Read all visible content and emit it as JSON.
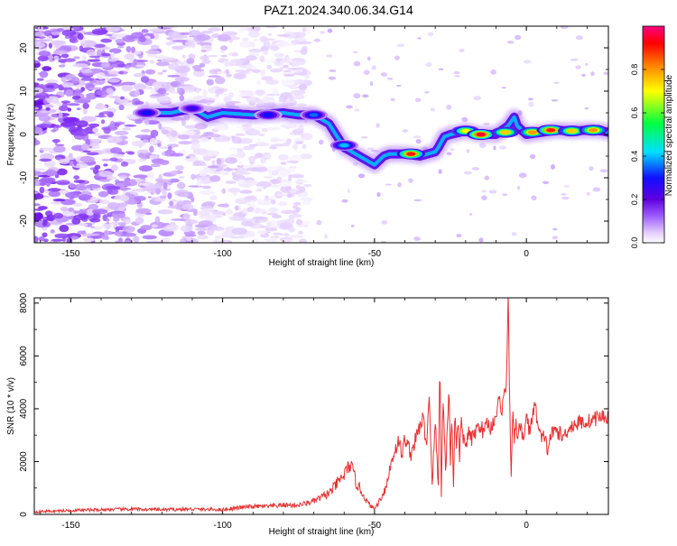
{
  "title": "PAZ1.2024.340.06.34.G14",
  "chart_data": [
    {
      "type": "heatmap",
      "xlabel": "Height of straight line (km)",
      "ylabel": "Frequency (Hz)",
      "xlim": [
        -162,
        27
      ],
      "ylim": [
        -25,
        25
      ],
      "xticks": [
        -150,
        -100,
        -50,
        0
      ],
      "yticks": [
        -20,
        -10,
        0,
        10,
        20
      ],
      "colorbar": {
        "label": "Normalized spectral amplitude",
        "range": [
          0,
          1
        ],
        "ticks": [
          0.0,
          0.2,
          0.4,
          0.6,
          0.8
        ]
      },
      "ridge": {
        "x": [
          -125,
          -117,
          -110,
          -105,
          -100,
          -90,
          -80,
          -75,
          -70,
          -65,
          -60,
          -55,
          -50,
          -47,
          -45,
          -40,
          -35,
          -30,
          -29,
          -27,
          -25,
          -20,
          -15,
          -10,
          -6,
          -4,
          -3,
          0,
          5,
          10,
          15,
          20,
          25,
          27
        ],
        "y": [
          5,
          5,
          6,
          4,
          5,
          4.5,
          5,
          4.5,
          4.5,
          2.5,
          -3,
          -5,
          -7,
          -5,
          -4.5,
          -4.5,
          -5,
          -4,
          -3,
          -0.5,
          0,
          0.8,
          0,
          0,
          2,
          4,
          2,
          0,
          0.5,
          1,
          0.8,
          1,
          0.8,
          0.5
        ]
      },
      "peaks": [
        {
          "x": -125,
          "y": 5,
          "amplitude": 0.3
        },
        {
          "x": -110,
          "y": 6,
          "amplitude": 0.25
        },
        {
          "x": -85,
          "y": 4.5,
          "amplitude": 0.3
        },
        {
          "x": -70,
          "y": 4.5,
          "amplitude": 0.35
        },
        {
          "x": -60,
          "y": -2.5,
          "amplitude": 0.4
        },
        {
          "x": -38,
          "y": -4.5,
          "amplitude": 0.9
        },
        {
          "x": -20,
          "y": 0.8,
          "amplitude": 0.7
        },
        {
          "x": -15,
          "y": 0,
          "amplitude": 0.95
        },
        {
          "x": -7,
          "y": 0.5,
          "amplitude": 0.75
        },
        {
          "x": 2,
          "y": 0.5,
          "amplitude": 0.8
        },
        {
          "x": 8,
          "y": 1,
          "amplitude": 0.9
        },
        {
          "x": 15,
          "y": 0.8,
          "amplitude": 0.75
        },
        {
          "x": 22,
          "y": 1,
          "amplitude": 0.8
        }
      ]
    },
    {
      "type": "line",
      "xlabel": "Height of straight line (km)",
      "ylabel": "SNR (10 * v/v)",
      "xlim": [
        -162,
        27
      ],
      "ylim": [
        0,
        8200
      ],
      "xticks": [
        -150,
        -100,
        -50,
        0
      ],
      "yticks": [
        0,
        2000,
        4000,
        6000,
        8000
      ],
      "color": "#e83030",
      "series": [
        {
          "x": [
            -162,
            -150,
            -140,
            -130,
            -120,
            -110,
            -100,
            -95,
            -90,
            -85,
            -80,
            -75,
            -70,
            -65,
            -62,
            -60,
            -58,
            -56,
            -54,
            -52,
            -50,
            -48,
            -46,
            -45,
            -44,
            -42,
            -41,
            -40,
            -38,
            -36,
            -34,
            -33,
            -32,
            -31,
            -30,
            -29,
            -28.5,
            -28,
            -27.5,
            -27,
            -26.5,
            -26,
            -25.5,
            -25,
            -24.5,
            -24,
            -23.5,
            -23,
            -22.5,
            -22,
            -21.5,
            -21,
            -20,
            -19,
            -18,
            -17,
            -16,
            -15,
            -14,
            -13,
            -12,
            -11,
            -10,
            -9,
            -8,
            -7,
            -6.5,
            -6,
            -5.5,
            -5,
            -4.5,
            -4,
            -3.5,
            -3,
            -2,
            -1,
            0,
            1,
            2,
            3,
            4,
            5,
            6,
            7,
            8,
            10,
            12,
            14,
            16,
            18,
            20,
            22,
            24,
            26,
            27
          ],
          "y": [
            100,
            150,
            180,
            200,
            180,
            200,
            180,
            250,
            300,
            300,
            350,
            350,
            500,
            800,
            1200,
            1500,
            1900,
            1200,
            800,
            400,
            200,
            600,
            1100,
            1700,
            2200,
            2800,
            2200,
            2900,
            2300,
            3000,
            3700,
            2500,
            4500,
            1200,
            3500,
            1000,
            6000,
            800,
            4500,
            3000,
            1500,
            3500,
            4800,
            2000,
            3900,
            1000,
            4200,
            2500,
            3500,
            2200,
            3500,
            3000,
            2600,
            3100,
            2800,
            3100,
            3300,
            3400,
            3000,
            3600,
            3200,
            3500,
            3800,
            4300,
            4000,
            4800,
            5000,
            8200,
            4400,
            1300,
            3800,
            2800,
            3400,
            3100,
            3300,
            2800,
            3800,
            3100,
            3800,
            4100,
            3200,
            2800,
            3000,
            2400,
            3000,
            3200,
            2900,
            3300,
            3400,
            3500,
            3500,
            3600,
            3700,
            3700,
            3700
          ]
        }
      ]
    }
  ]
}
